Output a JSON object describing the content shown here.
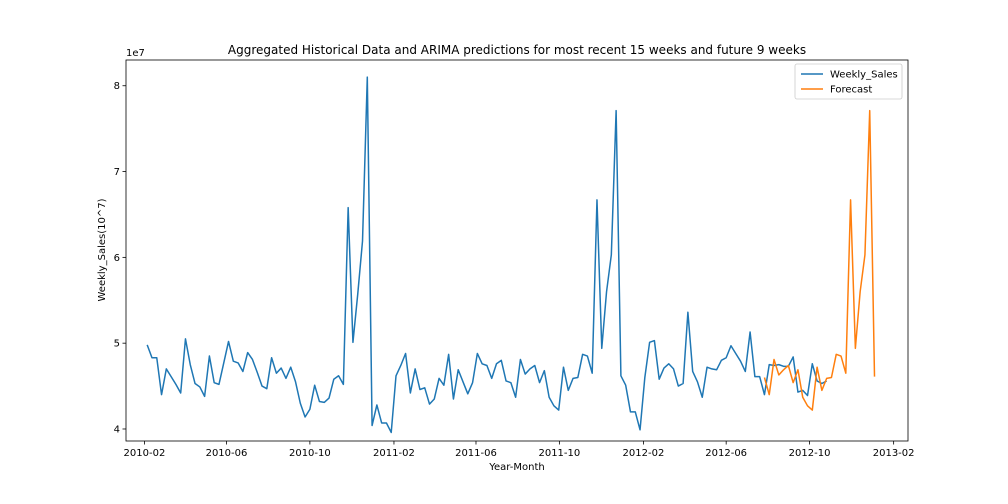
{
  "chart_data": {
    "type": "line",
    "title": "Aggregated Historical Data and ARIMA predictions for most recent 15 weeks and future 9 weeks",
    "xlabel": "Year-Month",
    "ylabel": "Weekly_Sales(10^7)",
    "y_multiplier_label": "1e7",
    "xlim": [
      "2010-01-05",
      "2013-02-22"
    ],
    "ylim": [
      3.86,
      8.3
    ],
    "x_ticks": [
      {
        "date": "2010-02-01",
        "label": "2010-02"
      },
      {
        "date": "2010-06-01",
        "label": "2010-06"
      },
      {
        "date": "2010-10-01",
        "label": "2010-10"
      },
      {
        "date": "2011-02-01",
        "label": "2011-02"
      },
      {
        "date": "2011-06-01",
        "label": "2011-06"
      },
      {
        "date": "2011-10-01",
        "label": "2011-10"
      },
      {
        "date": "2012-02-01",
        "label": "2012-02"
      },
      {
        "date": "2012-06-01",
        "label": "2012-06"
      },
      {
        "date": "2012-10-01",
        "label": "2012-10"
      },
      {
        "date": "2013-02-01",
        "label": "2013-02"
      }
    ],
    "y_ticks": [
      4,
      5,
      6,
      7,
      8
    ],
    "grid": false,
    "legend_position": "top-right",
    "series": [
      {
        "name": "Weekly_Sales",
        "color": "#1f77b4",
        "start_date": "2010-02-05",
        "values": [
          4.98,
          4.83,
          4.83,
          4.4,
          4.7,
          4.61,
          4.52,
          4.42,
          5.05,
          4.75,
          4.53,
          4.49,
          4.38,
          4.85,
          4.54,
          4.52,
          4.77,
          5.02,
          4.79,
          4.77,
          4.67,
          4.89,
          4.81,
          4.66,
          4.5,
          4.47,
          4.83,
          4.65,
          4.71,
          4.59,
          4.72,
          4.55,
          4.3,
          4.14,
          4.23,
          4.51,
          4.32,
          4.31,
          4.36,
          4.58,
          4.62,
          4.52,
          6.58,
          5.01,
          5.57,
          6.19,
          8.1,
          4.04,
          4.28,
          4.07,
          4.07,
          3.96,
          4.62,
          4.74,
          4.88,
          4.42,
          4.7,
          4.46,
          4.48,
          4.29,
          4.35,
          4.59,
          4.51,
          4.87,
          4.35,
          4.69,
          4.55,
          4.41,
          4.54,
          4.88,
          4.76,
          4.74,
          4.59,
          4.76,
          4.8,
          4.56,
          4.54,
          4.37,
          4.81,
          4.64,
          4.7,
          4.74,
          4.54,
          4.68,
          4.37,
          4.27,
          4.22,
          4.72,
          4.45,
          4.59,
          4.6,
          4.87,
          4.85,
          4.65,
          6.67,
          4.94,
          5.6,
          6.03,
          7.71,
          4.62,
          4.51,
          4.2,
          4.2,
          3.99,
          4.6,
          5.01,
          5.03,
          4.58,
          4.71,
          4.76,
          4.7,
          4.5,
          4.53,
          5.36,
          4.67,
          4.55,
          4.37,
          4.72,
          4.7,
          4.69,
          4.8,
          4.83,
          4.97,
          4.88,
          4.79,
          4.67,
          5.13,
          4.61,
          4.61,
          4.4,
          4.75,
          4.74,
          4.75,
          4.73,
          4.73,
          4.84,
          4.43,
          4.45,
          4.39,
          4.76,
          4.56,
          4.53,
          4.56
        ]
      },
      {
        "name": "Forecast",
        "color": "#ff7f0e",
        "start_date": "2012-07-27",
        "values": [
          4.6,
          4.4,
          4.81,
          4.63,
          4.69,
          4.74,
          4.54,
          4.69,
          4.37,
          4.27,
          4.22,
          4.72,
          4.45,
          4.59,
          4.6,
          4.87,
          4.85,
          4.65,
          6.67,
          4.94,
          5.6,
          6.03,
          7.71,
          4.61
        ]
      }
    ]
  }
}
